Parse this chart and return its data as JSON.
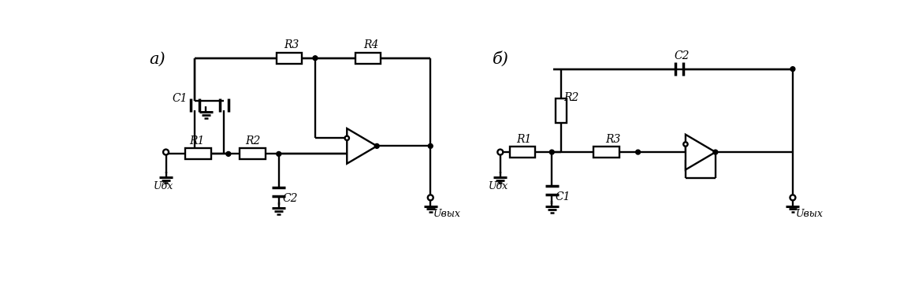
{
  "bg_color": "#ffffff",
  "line_color": "#000000",
  "lw": 1.7,
  "label_a": "а)",
  "label_b": "б)",
  "ubx": "Uбх",
  "uvyx": "Uвых",
  "figsize": [
    11.56,
    3.77
  ],
  "dpi": 100
}
